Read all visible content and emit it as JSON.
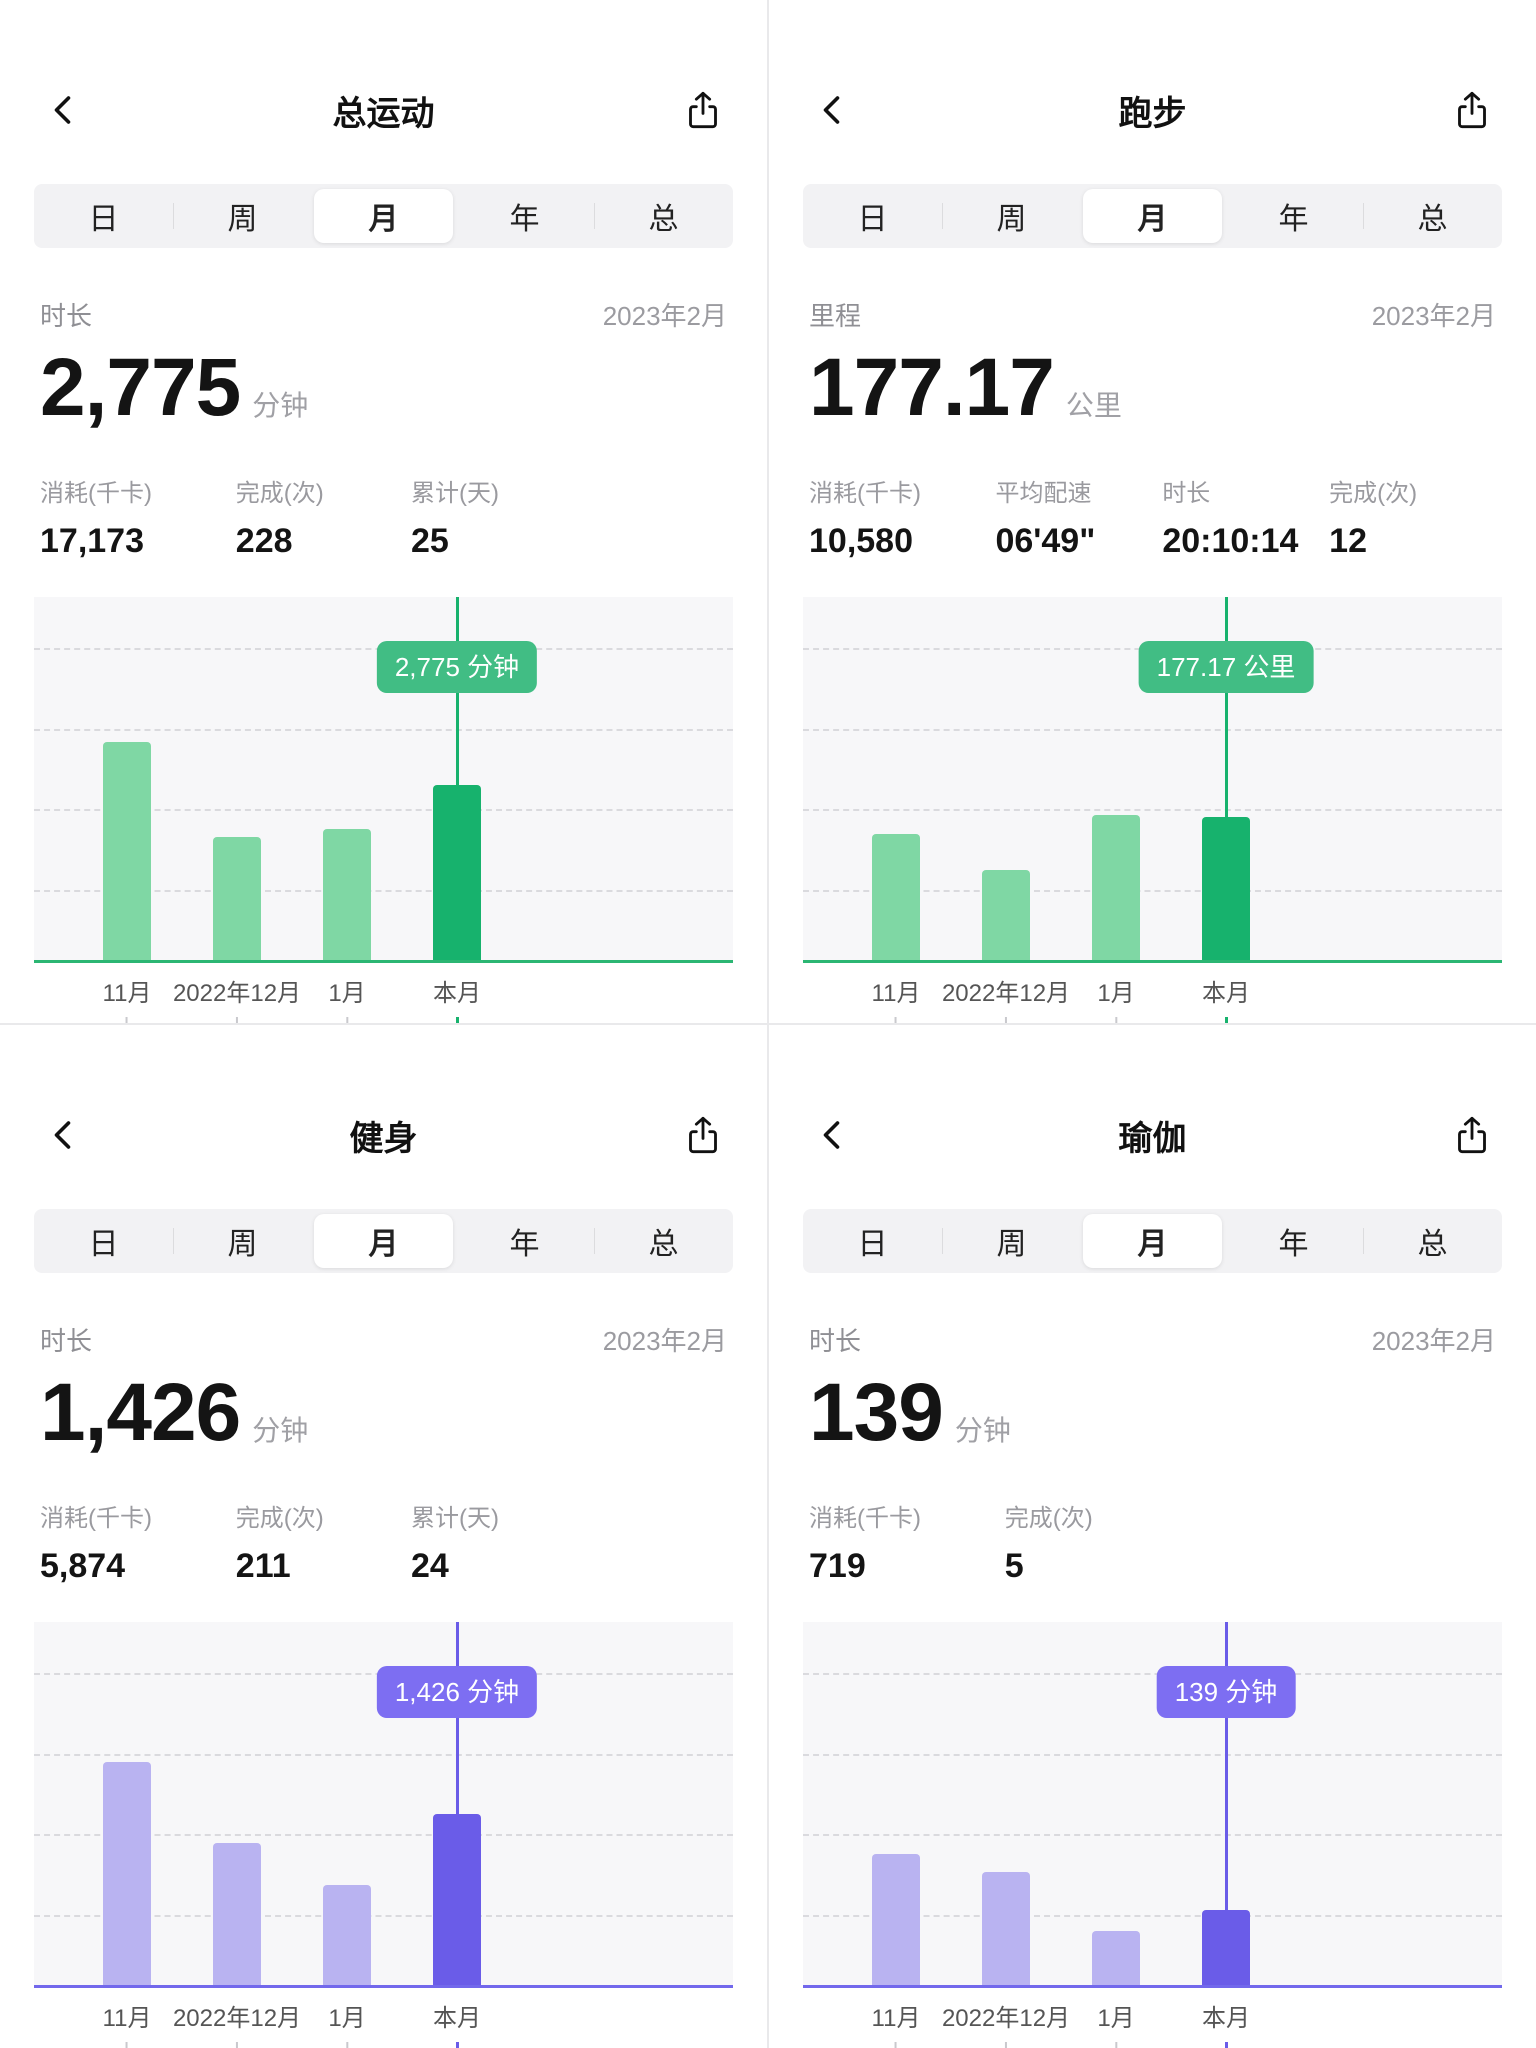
{
  "panels": [
    {
      "title": "总运动",
      "tabs": [
        "日",
        "周",
        "月",
        "年",
        "总"
      ],
      "active_tab": "月",
      "metric_label": "时长",
      "period": "2023年2月",
      "value": "2,775",
      "unit": "分钟",
      "stats": [
        {
          "label": "消耗(千卡)",
          "value": "17,173"
        },
        {
          "label": "完成(次)",
          "value": "228"
        },
        {
          "label": "累计(天)",
          "value": "25"
        }
      ],
      "tooltip": "2,775 分钟",
      "theme": {
        "light": "#7fd7a4",
        "dark": "#17b26d",
        "tooltip": "#41bd84",
        "axis": "#2bb673"
      },
      "chart_data": {
        "type": "bar",
        "categories": [
          "11月",
          "2022年12月",
          "1月",
          "本月"
        ],
        "values": [
          3450,
          1950,
          2070,
          2775
        ],
        "highlight_index": 3,
        "ymax": 5600,
        "ylabel": "分钟"
      }
    },
    {
      "title": "跑步",
      "tabs": [
        "日",
        "周",
        "月",
        "年",
        "总"
      ],
      "active_tab": "月",
      "metric_label": "里程",
      "period": "2023年2月",
      "value": "177.17",
      "unit": "公里",
      "stats": [
        {
          "label": "消耗(千卡)",
          "value": "10,580"
        },
        {
          "label": "平均配速",
          "value": "06'49\""
        },
        {
          "label": "时长",
          "value": "20:10:14"
        },
        {
          "label": "完成(次)",
          "value": "12"
        }
      ],
      "tooltip": "177.17 公里",
      "theme": {
        "light": "#7fd7a4",
        "dark": "#17b26d",
        "tooltip": "#41bd84",
        "axis": "#2bb673"
      },
      "chart_data": {
        "type": "bar",
        "categories": [
          "11月",
          "2022年12月",
          "1月",
          "本月"
        ],
        "values": [
          156,
          112,
          180,
          177.17
        ],
        "highlight_index": 3,
        "ymax": 440,
        "ylabel": "公里"
      }
    },
    {
      "title": "健身",
      "tabs": [
        "日",
        "周",
        "月",
        "年",
        "总"
      ],
      "active_tab": "月",
      "metric_label": "时长",
      "period": "2023年2月",
      "value": "1,426",
      "unit": "分钟",
      "stats": [
        {
          "label": "消耗(千卡)",
          "value": "5,874"
        },
        {
          "label": "完成(次)",
          "value": "211"
        },
        {
          "label": "累计(天)",
          "value": "24"
        }
      ],
      "tooltip": "1,426 分钟",
      "theme": {
        "light": "#b9b3f1",
        "dark": "#6a5ce8",
        "tooltip": "#7d6ef2",
        "axis": "#7268ec"
      },
      "chart_data": {
        "type": "bar",
        "categories": [
          "11月",
          "2022年12月",
          "1月",
          "本月"
        ],
        "values": [
          1860,
          1180,
          830,
          1426
        ],
        "highlight_index": 3,
        "ymax": 2950,
        "ylabel": "分钟"
      }
    },
    {
      "title": "瑜伽",
      "tabs": [
        "日",
        "周",
        "月",
        "年",
        "总"
      ],
      "active_tab": "月",
      "metric_label": "时长",
      "period": "2023年2月",
      "value": "139",
      "unit": "分钟",
      "stats": [
        {
          "label": "消耗(千卡)",
          "value": "719"
        },
        {
          "label": "完成(次)",
          "value": "5"
        }
      ],
      "tooltip": "139 分钟",
      "theme": {
        "light": "#b9b3f1",
        "dark": "#6a5ce8",
        "tooltip": "#7d6ef2",
        "axis": "#7268ec"
      },
      "chart_data": {
        "type": "bar",
        "categories": [
          "11月",
          "2022年12月",
          "1月",
          "本月"
        ],
        "values": [
          245,
          210,
          100,
          139
        ],
        "highlight_index": 3,
        "ymax": 660,
        "ylabel": "分钟"
      }
    }
  ]
}
